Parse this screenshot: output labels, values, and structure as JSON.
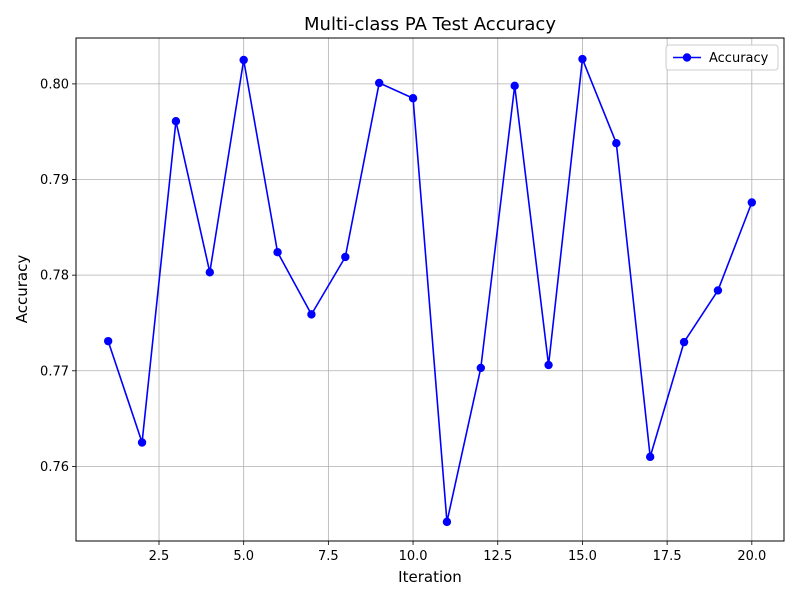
{
  "chart_data": {
    "type": "line",
    "title": "Multi-class PA Test Accuracy",
    "xlabel": "Iteration",
    "ylabel": "Accuracy",
    "xlim": [
      0.05,
      20.95
    ],
    "ylim": [
      0.7522,
      0.8048
    ],
    "xticks": [
      2.5,
      5.0,
      7.5,
      10.0,
      12.5,
      15.0,
      17.5,
      20.0
    ],
    "xtick_labels": [
      "2.5",
      "5.0",
      "7.5",
      "10.0",
      "12.5",
      "15.0",
      "17.5",
      "20.0"
    ],
    "yticks": [
      0.76,
      0.77,
      0.78,
      0.79,
      0.8
    ],
    "ytick_labels": [
      "0.76",
      "0.77",
      "0.78",
      "0.79",
      "0.80"
    ],
    "grid": true,
    "legend_position": "top-right",
    "series": [
      {
        "name": "Accuracy",
        "color": "#0000ff",
        "marker": "circle",
        "x": [
          1,
          2,
          3,
          4,
          5,
          6,
          7,
          8,
          9,
          10,
          11,
          12,
          13,
          14,
          15,
          16,
          17,
          18,
          19,
          20
        ],
        "y": [
          0.7731,
          0.7625,
          0.7961,
          0.7803,
          0.8025,
          0.7824,
          0.7759,
          0.7819,
          0.8001,
          0.7985,
          0.7542,
          0.7703,
          0.7998,
          0.7706,
          0.8026,
          0.7938,
          0.761,
          0.773,
          0.7784,
          0.7876
        ]
      }
    ]
  }
}
